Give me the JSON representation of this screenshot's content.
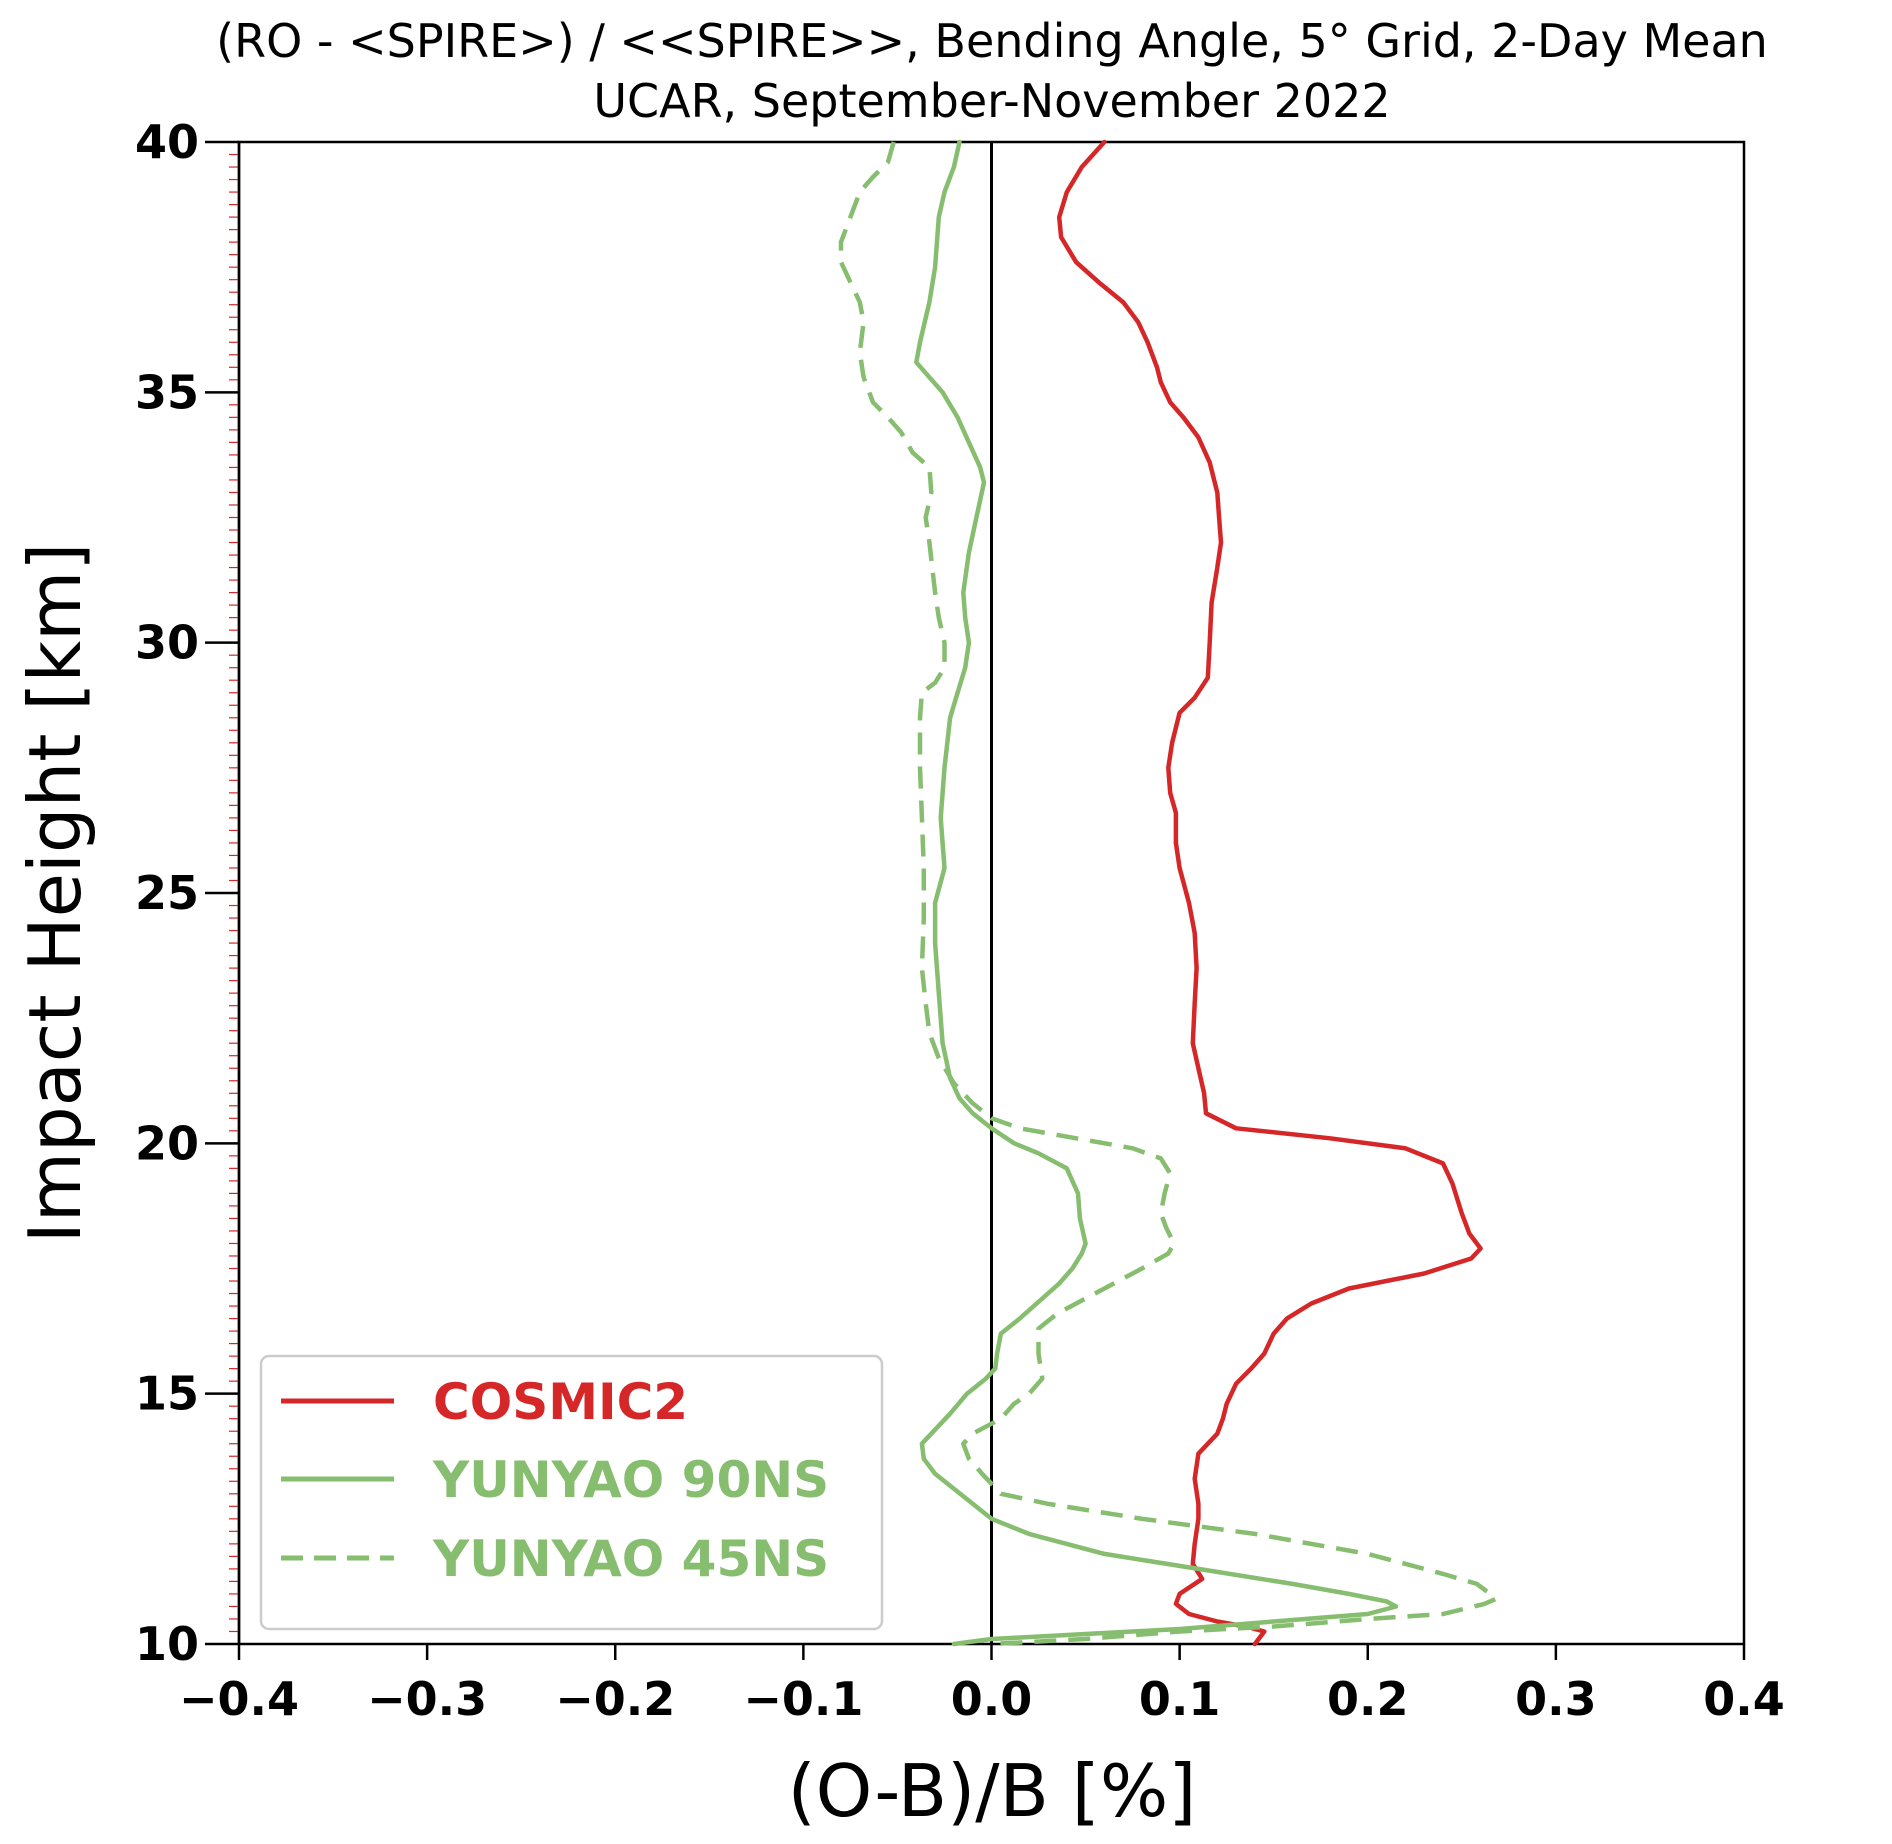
{
  "chart_data": {
    "type": "line",
    "title": "(RO - <SPIRE>) / <<SPIRE>>, Bending Angle, 5° Grid, 2-Day Mean",
    "subtitle": "UCAR, September-November 2022",
    "xlabel": "(O-B)/B [%]",
    "ylabel": "Impact Height [km]",
    "xlim": [
      -0.4,
      0.4
    ],
    "ylim": [
      10,
      40
    ],
    "x_ticks": [
      "−0.4",
      "−0.3",
      "−0.2",
      "−0.1",
      "0.0",
      "0.1",
      "0.2",
      "0.3",
      "0.4"
    ],
    "y_ticks": [
      "10",
      "15",
      "20",
      "25",
      "30",
      "35",
      "40"
    ],
    "zero_line": 0.0,
    "legend_position": "lower-left",
    "series": [
      {
        "name": "COSMIC2",
        "color": "#d62728",
        "dash": "solid",
        "points": [
          [
            0.06,
            40.0
          ],
          [
            0.048,
            39.5
          ],
          [
            0.04,
            39.0
          ],
          [
            0.036,
            38.5
          ],
          [
            0.037,
            38.1
          ],
          [
            0.045,
            37.6
          ],
          [
            0.057,
            37.2
          ],
          [
            0.07,
            36.8
          ],
          [
            0.078,
            36.4
          ],
          [
            0.083,
            36.0
          ],
          [
            0.088,
            35.5
          ],
          [
            0.09,
            35.2
          ],
          [
            0.095,
            34.8
          ],
          [
            0.102,
            34.5
          ],
          [
            0.11,
            34.1
          ],
          [
            0.116,
            33.6
          ],
          [
            0.12,
            33.0
          ],
          [
            0.121,
            32.5
          ],
          [
            0.122,
            32.0
          ],
          [
            0.12,
            31.5
          ],
          [
            0.117,
            30.8
          ],
          [
            0.116,
            30.0
          ],
          [
            0.115,
            29.3
          ],
          [
            0.108,
            28.9
          ],
          [
            0.1,
            28.6
          ],
          [
            0.096,
            28.0
          ],
          [
            0.094,
            27.5
          ],
          [
            0.095,
            27.0
          ],
          [
            0.098,
            26.6
          ],
          [
            0.098,
            26.0
          ],
          [
            0.1,
            25.5
          ],
          [
            0.105,
            24.8
          ],
          [
            0.108,
            24.2
          ],
          [
            0.109,
            23.5
          ],
          [
            0.108,
            22.8
          ],
          [
            0.107,
            22.0
          ],
          [
            0.11,
            21.5
          ],
          [
            0.113,
            21.0
          ],
          [
            0.114,
            20.6
          ],
          [
            0.13,
            20.3
          ],
          [
            0.18,
            20.1
          ],
          [
            0.22,
            19.9
          ],
          [
            0.24,
            19.6
          ],
          [
            0.245,
            19.2
          ],
          [
            0.25,
            18.6
          ],
          [
            0.252,
            18.4
          ],
          [
            0.254,
            18.2
          ],
          [
            0.26,
            17.9
          ],
          [
            0.255,
            17.7
          ],
          [
            0.23,
            17.4
          ],
          [
            0.19,
            17.1
          ],
          [
            0.17,
            16.8
          ],
          [
            0.157,
            16.5
          ],
          [
            0.15,
            16.2
          ],
          [
            0.145,
            15.8
          ],
          [
            0.138,
            15.5
          ],
          [
            0.13,
            15.2
          ],
          [
            0.125,
            14.8
          ],
          [
            0.123,
            14.5
          ],
          [
            0.12,
            14.2
          ],
          [
            0.11,
            13.8
          ],
          [
            0.108,
            13.3
          ],
          [
            0.11,
            12.8
          ],
          [
            0.11,
            12.5
          ],
          [
            0.108,
            12.0
          ],
          [
            0.107,
            11.6
          ],
          [
            0.112,
            11.3
          ],
          [
            0.1,
            11.0
          ],
          [
            0.098,
            10.8
          ],
          [
            0.105,
            10.6
          ],
          [
            0.12,
            10.45
          ],
          [
            0.135,
            10.35
          ],
          [
            0.145,
            10.25
          ],
          [
            0.14,
            10.0
          ]
        ]
      },
      {
        "name": "YUNYAO 90NS",
        "color": "#86bd6f",
        "dash": "solid",
        "points": [
          [
            -0.017,
            40.0
          ],
          [
            -0.02,
            39.5
          ],
          [
            -0.025,
            39.0
          ],
          [
            -0.028,
            38.5
          ],
          [
            -0.03,
            37.5
          ],
          [
            -0.033,
            36.8
          ],
          [
            -0.038,
            36.0
          ],
          [
            -0.04,
            35.6
          ],
          [
            -0.033,
            35.3
          ],
          [
            -0.026,
            35.0
          ],
          [
            -0.018,
            34.5
          ],
          [
            -0.012,
            34.0
          ],
          [
            -0.006,
            33.5
          ],
          [
            -0.004,
            33.2
          ],
          [
            -0.008,
            32.5
          ],
          [
            -0.012,
            31.8
          ],
          [
            -0.015,
            31.0
          ],
          [
            -0.014,
            30.5
          ],
          [
            -0.012,
            30.0
          ],
          [
            -0.014,
            29.5
          ],
          [
            -0.018,
            29.0
          ],
          [
            -0.022,
            28.5
          ],
          [
            -0.025,
            27.5
          ],
          [
            -0.027,
            26.5
          ],
          [
            -0.025,
            25.5
          ],
          [
            -0.03,
            24.8
          ],
          [
            -0.03,
            24.0
          ],
          [
            -0.028,
            23.0
          ],
          [
            -0.026,
            22.0
          ],
          [
            -0.022,
            21.3
          ],
          [
            -0.017,
            20.9
          ],
          [
            -0.01,
            20.6
          ],
          [
            0.0,
            20.3
          ],
          [
            0.012,
            20.0
          ],
          [
            0.025,
            19.8
          ],
          [
            0.04,
            19.5
          ],
          [
            0.046,
            19.0
          ],
          [
            0.047,
            18.5
          ],
          [
            0.05,
            18.0
          ],
          [
            0.048,
            17.8
          ],
          [
            0.043,
            17.5
          ],
          [
            0.036,
            17.2
          ],
          [
            0.027,
            16.9
          ],
          [
            0.015,
            16.5
          ],
          [
            0.005,
            16.2
          ],
          [
            0.003,
            15.8
          ],
          [
            0.002,
            15.5
          ],
          [
            -0.003,
            15.3
          ],
          [
            -0.013,
            15.0
          ],
          [
            -0.022,
            14.6
          ],
          [
            -0.027,
            14.4
          ],
          [
            -0.037,
            14.0
          ],
          [
            -0.036,
            13.7
          ],
          [
            -0.03,
            13.4
          ],
          [
            -0.02,
            13.1
          ],
          [
            -0.01,
            12.8
          ],
          [
            0.0,
            12.5
          ],
          [
            0.02,
            12.2
          ],
          [
            0.06,
            11.8
          ],
          [
            0.11,
            11.5
          ],
          [
            0.16,
            11.2
          ],
          [
            0.19,
            11.0
          ],
          [
            0.21,
            10.85
          ],
          [
            0.215,
            10.75
          ],
          [
            0.2,
            10.6
          ],
          [
            0.15,
            10.45
          ],
          [
            0.1,
            10.3
          ],
          [
            0.05,
            10.2
          ],
          [
            0.0,
            10.1
          ],
          [
            -0.02,
            10.0
          ]
        ]
      },
      {
        "name": "YUNYAO 45NS",
        "color": "#86bd6f",
        "dash": "dashed",
        "points": [
          [
            -0.052,
            40.0
          ],
          [
            -0.055,
            39.6
          ],
          [
            -0.063,
            39.3
          ],
          [
            -0.07,
            39.0
          ],
          [
            -0.075,
            38.5
          ],
          [
            -0.08,
            38.0
          ],
          [
            -0.08,
            37.6
          ],
          [
            -0.075,
            37.2
          ],
          [
            -0.07,
            36.8
          ],
          [
            -0.068,
            36.4
          ],
          [
            -0.07,
            35.8
          ],
          [
            -0.068,
            35.3
          ],
          [
            -0.063,
            34.8
          ],
          [
            -0.055,
            34.5
          ],
          [
            -0.048,
            34.2
          ],
          [
            -0.042,
            33.8
          ],
          [
            -0.033,
            33.5
          ],
          [
            -0.032,
            33.0
          ],
          [
            -0.035,
            32.5
          ],
          [
            -0.033,
            32.0
          ],
          [
            -0.03,
            31.0
          ],
          [
            -0.028,
            30.5
          ],
          [
            -0.025,
            30.0
          ],
          [
            -0.025,
            29.5
          ],
          [
            -0.03,
            29.2
          ],
          [
            -0.037,
            29.0
          ],
          [
            -0.038,
            28.5
          ],
          [
            -0.038,
            27.5
          ],
          [
            -0.037,
            26.5
          ],
          [
            -0.036,
            25.5
          ],
          [
            -0.036,
            24.5
          ],
          [
            -0.037,
            23.5
          ],
          [
            -0.035,
            22.8
          ],
          [
            -0.033,
            22.2
          ],
          [
            -0.028,
            21.7
          ],
          [
            -0.02,
            21.2
          ],
          [
            -0.01,
            20.8
          ],
          [
            0.0,
            20.5
          ],
          [
            0.015,
            20.3
          ],
          [
            0.045,
            20.1
          ],
          [
            0.075,
            19.9
          ],
          [
            0.09,
            19.7
          ],
          [
            0.095,
            19.4
          ],
          [
            0.092,
            19.0
          ],
          [
            0.09,
            18.6
          ],
          [
            0.093,
            18.3
          ],
          [
            0.097,
            18.0
          ],
          [
            0.094,
            17.8
          ],
          [
            0.08,
            17.5
          ],
          [
            0.065,
            17.2
          ],
          [
            0.05,
            16.9
          ],
          [
            0.035,
            16.6
          ],
          [
            0.025,
            16.3
          ],
          [
            0.025,
            15.8
          ],
          [
            0.027,
            15.3
          ],
          [
            0.02,
            15.0
          ],
          [
            0.012,
            14.8
          ],
          [
            0.005,
            14.5
          ],
          [
            -0.01,
            14.2
          ],
          [
            -0.015,
            14.0
          ],
          [
            -0.012,
            13.7
          ],
          [
            -0.005,
            13.4
          ],
          [
            0.0,
            13.2
          ],
          [
            0.005,
            13.0
          ],
          [
            0.03,
            12.8
          ],
          [
            0.08,
            12.5
          ],
          [
            0.14,
            12.2
          ],
          [
            0.2,
            11.8
          ],
          [
            0.24,
            11.4
          ],
          [
            0.258,
            11.2
          ],
          [
            0.265,
            11.0
          ],
          [
            0.268,
            10.9
          ],
          [
            0.262,
            10.8
          ],
          [
            0.24,
            10.6
          ],
          [
            0.2,
            10.5
          ],
          [
            0.15,
            10.35
          ],
          [
            0.1,
            10.25
          ],
          [
            0.05,
            10.1
          ],
          [
            0.0,
            10.0
          ]
        ]
      }
    ]
  }
}
